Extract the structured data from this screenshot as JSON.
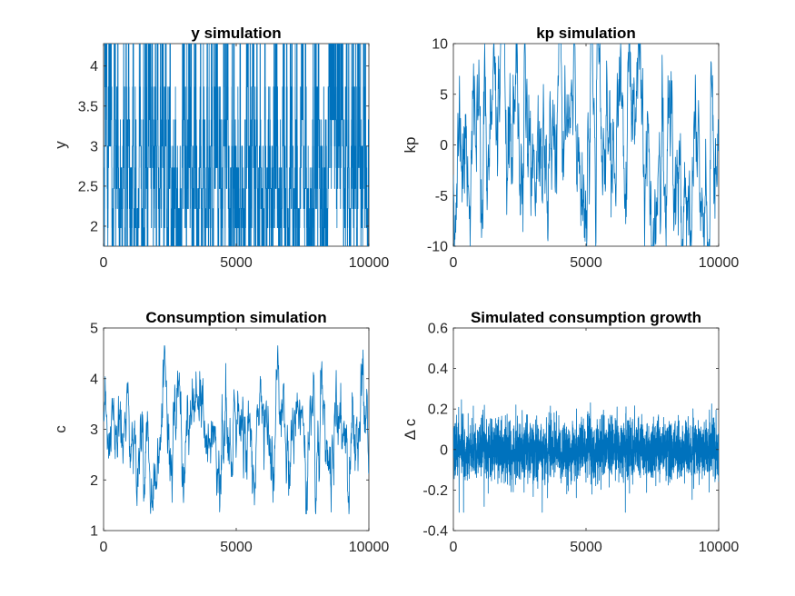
{
  "chart_data": [
    {
      "type": "line",
      "title": "y simulation",
      "ylabel": "y",
      "xlabel": "",
      "xlim": [
        0,
        10000
      ],
      "ylim": [
        1.75,
        4.28
      ],
      "xticks": [
        0,
        5000,
        10000
      ],
      "xtick_labels": [
        "0",
        "5000",
        "10000"
      ],
      "yticks": [
        2,
        2.5,
        3,
        3.5,
        4
      ],
      "ytick_labels": [
        "2",
        "2.5",
        "3",
        "3.5",
        "4"
      ],
      "color": "#0072bd",
      "grid": false,
      "legend": "none",
      "series": [
        {
          "kind": "markov",
          "n": 10000,
          "levels": [
            1.75,
            1.98,
            2.22,
            2.47,
            2.73,
            3.0,
            3.33,
            3.74,
            4.28
          ],
          "persistence": 0.5,
          "seed": 7
        }
      ]
    },
    {
      "type": "line",
      "title": "kp simulation",
      "ylabel": "kp",
      "xlabel": "",
      "xlim": [
        0,
        10000
      ],
      "ylim": [
        -10,
        10
      ],
      "xticks": [
        0,
        5000,
        10000
      ],
      "xtick_labels": [
        "0",
        "5000",
        "10000"
      ],
      "yticks": [
        -10,
        -5,
        0,
        5,
        10
      ],
      "ytick_labels": [
        "-10",
        "-5",
        "0",
        "5",
        "10"
      ],
      "color": "#0072bd",
      "grid": false,
      "legend": "none",
      "series": [
        {
          "kind": "ar",
          "n": 1000,
          "mean": 0,
          "rho": 0.88,
          "sd": 2.6,
          "clip": [
            -10,
            10
          ],
          "seed": 11
        }
      ]
    },
    {
      "type": "line",
      "title": "Consumption simulation",
      "ylabel": "c",
      "xlabel": "",
      "xlim": [
        0,
        10000
      ],
      "ylim": [
        1,
        5
      ],
      "xticks": [
        0,
        5000,
        10000
      ],
      "xtick_labels": [
        "0",
        "5000",
        "10000"
      ],
      "yticks": [
        1,
        2,
        3,
        4,
        5
      ],
      "ytick_labels": [
        "1",
        "2",
        "3",
        "4",
        "5"
      ],
      "color": "#0072bd",
      "grid": false,
      "legend": "none",
      "series": [
        {
          "kind": "ar",
          "n": 1000,
          "mean": 2.75,
          "rho": 0.85,
          "sd": 0.3,
          "clip": [
            1.33,
            4.65
          ],
          "seed": 23
        }
      ]
    },
    {
      "type": "line",
      "title": "Simulated consumption growth",
      "ylabel": "Δ c",
      "xlabel": "",
      "xlim": [
        0,
        10000
      ],
      "ylim": [
        -0.4,
        0.6
      ],
      "xticks": [
        0,
        5000,
        10000
      ],
      "xtick_labels": [
        "0",
        "5000",
        "10000"
      ],
      "yticks": [
        -0.4,
        -0.2,
        0,
        0.2,
        0.4,
        0.6
      ],
      "ytick_labels": [
        "-0.4",
        "-0.2",
        "0",
        "0.2",
        "0.4",
        "0.6"
      ],
      "color": "#0072bd",
      "grid": false,
      "legend": "none",
      "series": [
        {
          "kind": "noise",
          "n": 2500,
          "mean": 0,
          "sd": 0.075,
          "clip": [
            -0.31,
            0.43
          ],
          "seed": 41
        }
      ]
    }
  ]
}
